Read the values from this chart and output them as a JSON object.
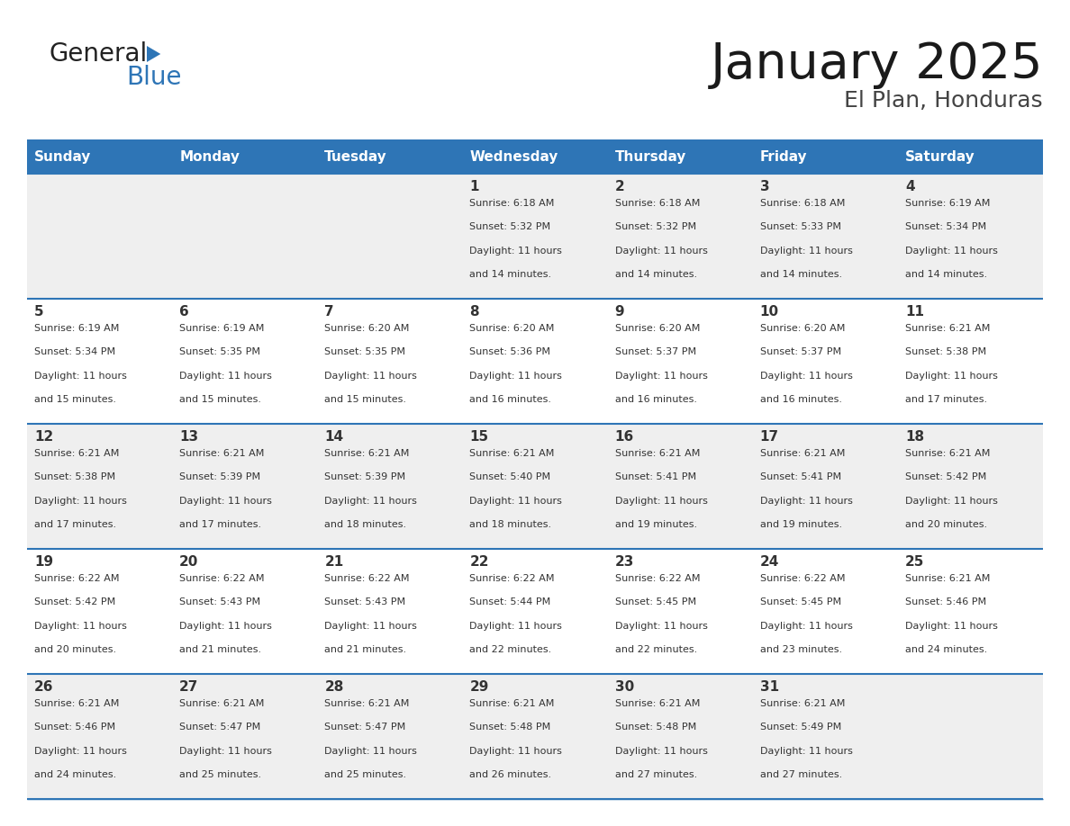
{
  "title": "January 2025",
  "subtitle": "El Plan, Honduras",
  "header_color": "#2E75B6",
  "header_text_color": "#FFFFFF",
  "row_bg_colors": [
    "#EFEFEF",
    "#FFFFFF"
  ],
  "border_color": "#2E75B6",
  "text_color": "#333333",
  "logo_general_color": "#222222",
  "logo_blue_color": "#2E75B6",
  "days_of_week": [
    "Sunday",
    "Monday",
    "Tuesday",
    "Wednesday",
    "Thursday",
    "Friday",
    "Saturday"
  ],
  "calendar_data": [
    [
      {
        "day": "",
        "sunrise": "",
        "sunset": "",
        "daylight": ""
      },
      {
        "day": "",
        "sunrise": "",
        "sunset": "",
        "daylight": ""
      },
      {
        "day": "",
        "sunrise": "",
        "sunset": "",
        "daylight": ""
      },
      {
        "day": "1",
        "sunrise": "6:18 AM",
        "sunset": "5:32 PM",
        "daylight": "11 hours and 14 minutes."
      },
      {
        "day": "2",
        "sunrise": "6:18 AM",
        "sunset": "5:32 PM",
        "daylight": "11 hours and 14 minutes."
      },
      {
        "day": "3",
        "sunrise": "6:18 AM",
        "sunset": "5:33 PM",
        "daylight": "11 hours and 14 minutes."
      },
      {
        "day": "4",
        "sunrise": "6:19 AM",
        "sunset": "5:34 PM",
        "daylight": "11 hours and 14 minutes."
      }
    ],
    [
      {
        "day": "5",
        "sunrise": "6:19 AM",
        "sunset": "5:34 PM",
        "daylight": "11 hours and 15 minutes."
      },
      {
        "day": "6",
        "sunrise": "6:19 AM",
        "sunset": "5:35 PM",
        "daylight": "11 hours and 15 minutes."
      },
      {
        "day": "7",
        "sunrise": "6:20 AM",
        "sunset": "5:35 PM",
        "daylight": "11 hours and 15 minutes."
      },
      {
        "day": "8",
        "sunrise": "6:20 AM",
        "sunset": "5:36 PM",
        "daylight": "11 hours and 16 minutes."
      },
      {
        "day": "9",
        "sunrise": "6:20 AM",
        "sunset": "5:37 PM",
        "daylight": "11 hours and 16 minutes."
      },
      {
        "day": "10",
        "sunrise": "6:20 AM",
        "sunset": "5:37 PM",
        "daylight": "11 hours and 16 minutes."
      },
      {
        "day": "11",
        "sunrise": "6:21 AM",
        "sunset": "5:38 PM",
        "daylight": "11 hours and 17 minutes."
      }
    ],
    [
      {
        "day": "12",
        "sunrise": "6:21 AM",
        "sunset": "5:38 PM",
        "daylight": "11 hours and 17 minutes."
      },
      {
        "day": "13",
        "sunrise": "6:21 AM",
        "sunset": "5:39 PM",
        "daylight": "11 hours and 17 minutes."
      },
      {
        "day": "14",
        "sunrise": "6:21 AM",
        "sunset": "5:39 PM",
        "daylight": "11 hours and 18 minutes."
      },
      {
        "day": "15",
        "sunrise": "6:21 AM",
        "sunset": "5:40 PM",
        "daylight": "11 hours and 18 minutes."
      },
      {
        "day": "16",
        "sunrise": "6:21 AM",
        "sunset": "5:41 PM",
        "daylight": "11 hours and 19 minutes."
      },
      {
        "day": "17",
        "sunrise": "6:21 AM",
        "sunset": "5:41 PM",
        "daylight": "11 hours and 19 minutes."
      },
      {
        "day": "18",
        "sunrise": "6:21 AM",
        "sunset": "5:42 PM",
        "daylight": "11 hours and 20 minutes."
      }
    ],
    [
      {
        "day": "19",
        "sunrise": "6:22 AM",
        "sunset": "5:42 PM",
        "daylight": "11 hours and 20 minutes."
      },
      {
        "day": "20",
        "sunrise": "6:22 AM",
        "sunset": "5:43 PM",
        "daylight": "11 hours and 21 minutes."
      },
      {
        "day": "21",
        "sunrise": "6:22 AM",
        "sunset": "5:43 PM",
        "daylight": "11 hours and 21 minutes."
      },
      {
        "day": "22",
        "sunrise": "6:22 AM",
        "sunset": "5:44 PM",
        "daylight": "11 hours and 22 minutes."
      },
      {
        "day": "23",
        "sunrise": "6:22 AM",
        "sunset": "5:45 PM",
        "daylight": "11 hours and 22 minutes."
      },
      {
        "day": "24",
        "sunrise": "6:22 AM",
        "sunset": "5:45 PM",
        "daylight": "11 hours and 23 minutes."
      },
      {
        "day": "25",
        "sunrise": "6:21 AM",
        "sunset": "5:46 PM",
        "daylight": "11 hours and 24 minutes."
      }
    ],
    [
      {
        "day": "26",
        "sunrise": "6:21 AM",
        "sunset": "5:46 PM",
        "daylight": "11 hours and 24 minutes."
      },
      {
        "day": "27",
        "sunrise": "6:21 AM",
        "sunset": "5:47 PM",
        "daylight": "11 hours and 25 minutes."
      },
      {
        "day": "28",
        "sunrise": "6:21 AM",
        "sunset": "5:47 PM",
        "daylight": "11 hours and 25 minutes."
      },
      {
        "day": "29",
        "sunrise": "6:21 AM",
        "sunset": "5:48 PM",
        "daylight": "11 hours and 26 minutes."
      },
      {
        "day": "30",
        "sunrise": "6:21 AM",
        "sunset": "5:48 PM",
        "daylight": "11 hours and 27 minutes."
      },
      {
        "day": "31",
        "sunrise": "6:21 AM",
        "sunset": "5:49 PM",
        "daylight": "11 hours and 27 minutes."
      },
      {
        "day": "",
        "sunrise": "",
        "sunset": "",
        "daylight": ""
      }
    ]
  ],
  "fig_width": 11.88,
  "fig_height": 9.18,
  "dpi": 100
}
